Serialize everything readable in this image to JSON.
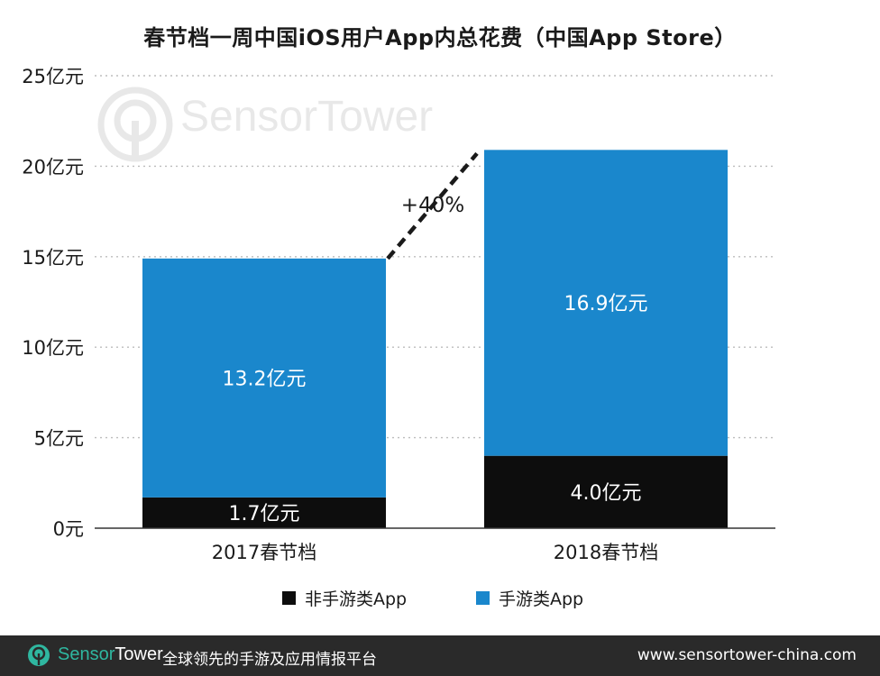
{
  "colors": {
    "game": "#1a87cc",
    "non_game": "#0d0d0d",
    "grid": "#bdbdbd",
    "axis": "#333333",
    "footer_bg": "#2a2a2a",
    "brand_teal": "#2fb7a0"
  },
  "chart_data": {
    "type": "bar",
    "stacked": true,
    "title": "春节档一周中国iOS用户App内总花费（中国App Store）",
    "categories": [
      "2017春节档",
      "2018春节档"
    ],
    "series": [
      {
        "name": "非手游类App",
        "values": [
          1.7,
          4.0
        ],
        "labels": [
          "1.7亿元",
          "4.0亿元"
        ],
        "color": "#0d0d0d"
      },
      {
        "name": "手游类App",
        "values": [
          13.2,
          16.9
        ],
        "labels": [
          "13.2亿元",
          "16.9亿元"
        ],
        "color": "#1a87cc"
      }
    ],
    "ylim": [
      0,
      25
    ],
    "yticks": [
      {
        "value": 0,
        "label": "0元"
      },
      {
        "value": 5,
        "label": "5亿元"
      },
      {
        "value": 10,
        "label": "10亿元"
      },
      {
        "value": 15,
        "label": "15亿元"
      },
      {
        "value": 20,
        "label": "20亿元"
      },
      {
        "value": 25,
        "label": "25亿元"
      }
    ],
    "grid": true,
    "legend_position": "bottom",
    "annotation": "+40%"
  },
  "watermark": {
    "text": "SensorTower"
  },
  "footer": {
    "brand_sensor": "Sensor",
    "brand_tower": "Tower",
    "tagline": "全球领先的手游及应用情报平台",
    "url": "www.sensortower-china.com",
    "icon": "sensortower-logo-icon"
  }
}
